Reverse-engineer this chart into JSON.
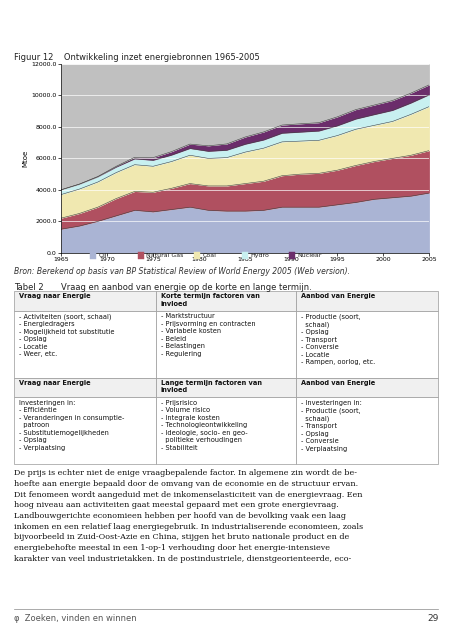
{
  "title_fig": "Figuur 12    Ontwikkeling inzet energiebronnen 1965-2005",
  "ylabel": "Mtoe",
  "source": "Bron: Berekend op basis van BP Statistical Review of World Energy 2005 (Web version).",
  "years": [
    1965,
    1967,
    1969,
    1971,
    1973,
    1975,
    1977,
    1979,
    1981,
    1983,
    1985,
    1987,
    1989,
    1991,
    1993,
    1995,
    1997,
    1999,
    2001,
    2003,
    2005
  ],
  "oil": [
    1500,
    1700,
    2000,
    2350,
    2700,
    2600,
    2750,
    2900,
    2700,
    2650,
    2650,
    2700,
    2900,
    2900,
    2900,
    3050,
    3200,
    3400,
    3500,
    3600,
    3800
  ],
  "natural_gas": [
    700,
    800,
    900,
    1100,
    1200,
    1250,
    1350,
    1500,
    1550,
    1600,
    1750,
    1850,
    2000,
    2100,
    2150,
    2200,
    2350,
    2400,
    2500,
    2600,
    2700
  ],
  "coal": [
    1500,
    1550,
    1600,
    1650,
    1700,
    1650,
    1700,
    1800,
    1750,
    1800,
    2000,
    2100,
    2150,
    2100,
    2100,
    2200,
    2300,
    2300,
    2350,
    2600,
    2800
  ],
  "hydro": [
    300,
    310,
    330,
    350,
    370,
    380,
    410,
    430,
    450,
    470,
    500,
    520,
    550,
    570,
    590,
    620,
    650,
    680,
    700,
    720,
    750
  ],
  "nuclear": [
    5,
    10,
    20,
    50,
    100,
    170,
    220,
    280,
    350,
    400,
    460,
    510,
    520,
    530,
    530,
    570,
    600,
    610,
    630,
    630,
    630
  ],
  "oil_color": "#aab4d4",
  "gas_color": "#b05060",
  "coal_color": "#f0e8b0",
  "hydro_color": "#c8f0f0",
  "nuclear_color": "#6b2d6b",
  "gray_color": "#c0c0c0",
  "ylim": [
    0,
    12000
  ],
  "yticks": [
    0,
    2000,
    4000,
    6000,
    8000,
    10000,
    12000
  ],
  "legend_labels": [
    "Oil",
    "Natural Gas",
    "Coal",
    "Hydro",
    "Nuclear"
  ],
  "tabel_title": "Tabel 2",
  "tabel_subtitle": "Vraag en aanbod van energie op de korte en lange termijn.",
  "col_headers_top": [
    "Vraag naar Energie",
    "Korte termijn factoren van\ninvloed",
    "Aanbod van Energie"
  ],
  "col_headers_bot": [
    "Vraag naar Energie",
    "Lange termijn factoren van\ninvloed",
    "Aanbod van Energie"
  ],
  "body_text": "De prijs is echter niet de enige vraagbepalende factor. In algemene zin wordt de be-\nhoefte aan energie bepaald door de omvang van de economie en de structuur ervan.\nDit fenomeen wordt aangeduid met de inkomenselasticiteit van de energievraag. Een\nhoog niveau aan activiteiten gaat meestal gepaard met een grote energievraag.\nLandbouwgerichte economieen hebben per hoofd van de bevolking vaak een laag\ninkomen en een relatief laag energiegebruik. In industrialiserende economieen, zoals\nbijvoorbeeld in Zuid-Oost-Azie en China, stijgen het bruto nationale product en de\nenergiebehofte meestal in een 1-op-1 verhouding door het energie-intensieve\nkarakter van veel industrietakken. In de postindustriele, dienstgeorienteerde, eco-",
  "footer_logo": "φ  Zoeken, vinden en winnen",
  "footer_page": "29"
}
